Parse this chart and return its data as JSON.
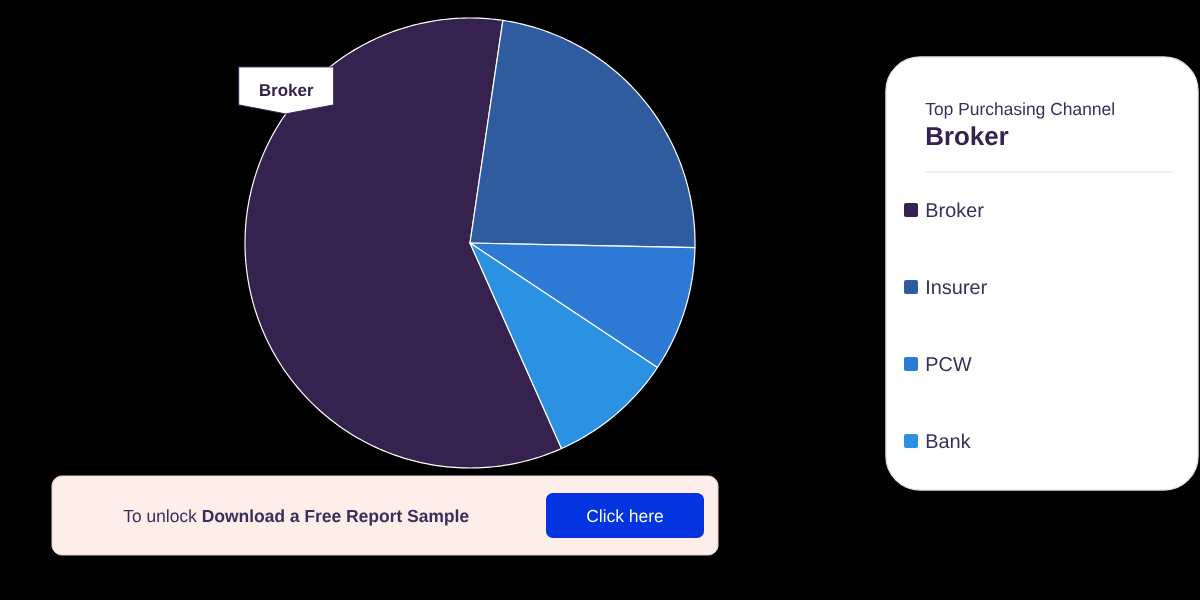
{
  "chart_data": {
    "type": "pie",
    "title": "Top Purchasing Channel",
    "subtitle": "Broker",
    "categories": [
      "Broker",
      "Insurer",
      "PCW",
      "Bank"
    ],
    "values": [
      59,
      23,
      9,
      9
    ],
    "colors": [
      "#35224f",
      "#2f5c9f",
      "#2c79d6",
      "#2b91e3"
    ],
    "legend": "right",
    "annotations": [
      "Broker",
      "To unlock **Download a Free Report Sample**",
      "Click here"
    ]
  }
}
